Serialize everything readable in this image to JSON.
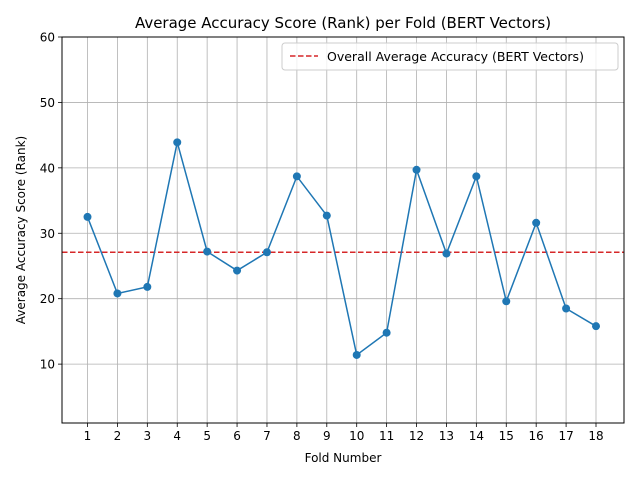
{
  "chart_data": {
    "type": "line",
    "title": "Average Accuracy Score (Rank) per Fold (BERT Vectors)",
    "xlabel": "Fold Number",
    "ylabel": "Average Accuracy Score (Rank)",
    "categories": [
      "1",
      "2",
      "3",
      "4",
      "5",
      "6",
      "7",
      "8",
      "9",
      "10",
      "11",
      "12",
      "13",
      "14",
      "15",
      "16",
      "17",
      "18"
    ],
    "series": [
      {
        "values": [
          32.5,
          20.8,
          21.8,
          43.9,
          27.2,
          24.3,
          27.1,
          38.7,
          32.7,
          11.4,
          14.8,
          39.7,
          26.9,
          38.7,
          19.6,
          31.6,
          18.5,
          15.8
        ],
        "color": "#1f77b4",
        "marker": "circle"
      }
    ],
    "reference_line": {
      "label": "Overall Average Accuracy (BERT Vectors)",
      "value": 27.1,
      "color": "#d62728",
      "style": "dashed"
    },
    "ylim": [
      1,
      60
    ],
    "yticks": [
      10,
      20,
      30,
      40,
      50,
      60
    ],
    "grid": true,
    "legend_position": "top-right"
  }
}
